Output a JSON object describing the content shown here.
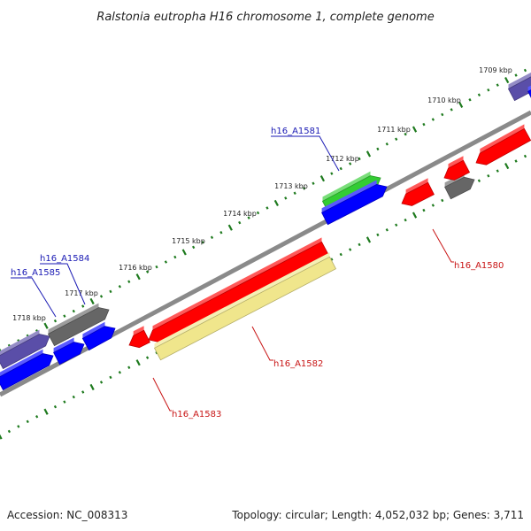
{
  "title": "Ralstonia eutropha H16 chromosome 1, complete genome",
  "footer": {
    "accession": "Accession: NC_008313",
    "summary": "Topology: circular; Length: 4,052,032 bp; Genes: 3,711"
  },
  "ticks": [
    {
      "label": "1709 kbp"
    },
    {
      "label": "1710 kbp"
    },
    {
      "label": "1711 kbp"
    },
    {
      "label": "1712 kbp"
    },
    {
      "label": "1713 kbp"
    },
    {
      "label": "1714 kbp"
    },
    {
      "label": "1715 kbp"
    },
    {
      "label": "1716 kbp"
    },
    {
      "label": "1717 kbp"
    },
    {
      "label": "1718 kbp"
    }
  ],
  "gene_labels": [
    {
      "name": "h16_A1581",
      "color": "#1a1ab4"
    },
    {
      "name": "h16_A1584",
      "color": "#1a1ab4"
    },
    {
      "name": "h16_A1585",
      "color": "#1a1ab4"
    },
    {
      "name": "h16_A1580",
      "color": "#c81414"
    },
    {
      "name": "h16_A1582",
      "color": "#c81414"
    },
    {
      "name": "h16_A1583",
      "color": "#c81414"
    }
  ],
  "colors": {
    "forward_cds": "#0000ff",
    "reverse_cds": "#ff0000",
    "gray_feature": "#666666",
    "purple_feature": "#5a4ea8",
    "green_feature": "#33cc33",
    "yellow_feature": "#f0e68c",
    "backbone": "#8a8a8a",
    "dots": "#1e7a1e"
  }
}
